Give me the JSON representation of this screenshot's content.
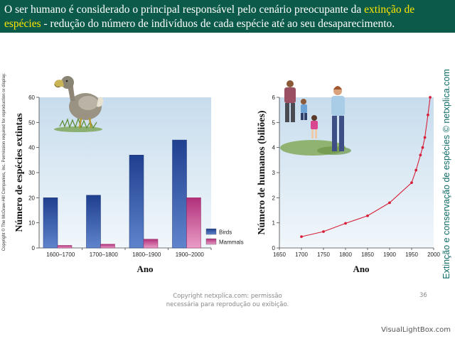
{
  "banner": {
    "part1": "O ser humano é considerado o principal responsável pelo cenário preocupante da ",
    "highlight1": "extinção de",
    "highlight2": "espécies",
    "part2": " - redução do número de indivíduos de cada espécie até ao seu desaparecimento."
  },
  "copyright_side": "Copyright © The McGraw-Hill Companies, Inc. Permission required for reproduction or display.",
  "side_note": "Extinção e conservação de espécies © netxplica.com",
  "footer": {
    "line1": "Copyright netxplica.com: permissão",
    "line2": "necessária para reprodução ou exibição."
  },
  "page_number": "36",
  "watermark": "VisualLightBox.com",
  "colors": {
    "banner_bg": "#0c5a4a",
    "highlight": "#ffe600",
    "birds": "#2e4fa3",
    "mammals": "#c4428c",
    "line": "#d6203a"
  },
  "chart_data": [
    {
      "type": "bar",
      "categories": [
        "1600–1700",
        "1700–1800",
        "1800–1900",
        "1900–2000"
      ],
      "series": [
        {
          "name": "Birds",
          "values": [
            20,
            21,
            37,
            43
          ]
        },
        {
          "name": "Mammals",
          "values": [
            1,
            1.5,
            3.5,
            20
          ]
        }
      ],
      "ylim": [
        0,
        60
      ],
      "yticks": [
        0,
        10,
        20,
        30,
        40,
        50,
        60
      ],
      "xlabel": "Ano",
      "ylabel": "Número de espécies extintas",
      "legend": "bottom-right",
      "grid": false
    },
    {
      "type": "line",
      "x": [
        1700,
        1750,
        1800,
        1850,
        1900,
        1950,
        1960,
        1970,
        1975,
        1980,
        1987
      ],
      "y": [
        0.45,
        0.65,
        0.98,
        1.28,
        1.8,
        2.6,
        3.1,
        3.7,
        4.0,
        4.4,
        5.3
      ],
      "extra_point": {
        "x": 1992,
        "y": 6.0
      },
      "xlim": [
        1650,
        2000
      ],
      "xticks": [
        1650,
        1700,
        1750,
        1800,
        1850,
        1900,
        1950,
        2000
      ],
      "ylim": [
        0,
        6
      ],
      "yticks": [
        0,
        1,
        2,
        3,
        4,
        5,
        6
      ],
      "xlabel": "Ano",
      "ylabel": "Número de humanos (biliões)",
      "grid": false
    }
  ]
}
